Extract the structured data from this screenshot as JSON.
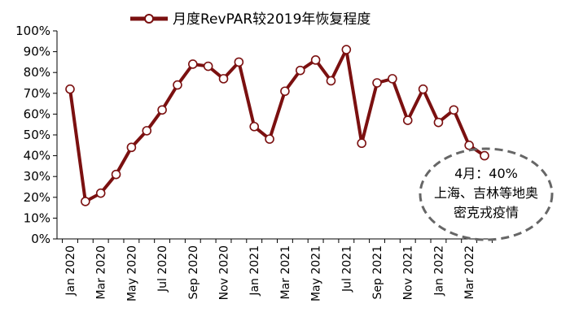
{
  "chart_data": {
    "type": "line",
    "legend": {
      "position": "top",
      "entries": [
        "月度RevPAR较2019年恢复程度"
      ]
    },
    "series": [
      {
        "name": "月度RevPAR较2019年恢复程度",
        "color": "#7b1010",
        "x": [
          "Jan 2020",
          "Feb 2020",
          "Mar 2020",
          "Apr 2020",
          "May 2020",
          "Jun 2020",
          "Jul 2020",
          "Aug 2020",
          "Sep 2020",
          "Oct 2020",
          "Nov 2020",
          "Dec 2020",
          "Jan 2021",
          "Feb 2021",
          "Mar 2021",
          "Apr 2021",
          "May 2021",
          "Jun 2021",
          "Jul 2021",
          "Aug 2021",
          "Sep 2021",
          "Oct 2021",
          "Nov 2021",
          "Dec 2021",
          "Jan 2022",
          "Feb 2022",
          "Mar 2022",
          "Apr 2022"
        ],
        "values": [
          72,
          18,
          22,
          31,
          44,
          52,
          62,
          74,
          84,
          83,
          77,
          85,
          54,
          48,
          71,
          81,
          86,
          76,
          91,
          46,
          75,
          77,
          57,
          72,
          56,
          62,
          45,
          40
        ]
      }
    ],
    "x_tick_labels": [
      "Jan 2020",
      "Mar 2020",
      "May 2020",
      "Jul 2020",
      "Sep 2020",
      "Nov 2020",
      "Jan 2021",
      "Mar 2021",
      "May 2021",
      "Jul 2021",
      "Sep 2021",
      "Nov 2021",
      "Jan 2022",
      "Mar 2022"
    ],
    "y_tick_labels": [
      "0%",
      "10%",
      "20%",
      "30%",
      "40%",
      "50%",
      "60%",
      "70%",
      "80%",
      "90%",
      "100%"
    ],
    "ylim": [
      0,
      100
    ],
    "grid": false,
    "annotation": {
      "lines": [
        "4月：40%",
        "上海、吉林等地奥",
        "密克戎疫情"
      ]
    }
  }
}
